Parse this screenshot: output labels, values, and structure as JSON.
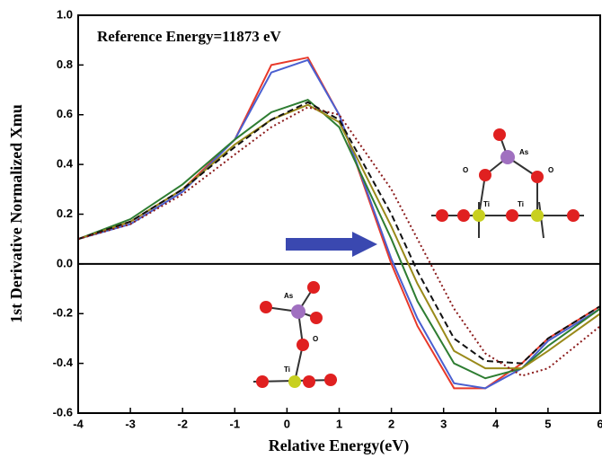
{
  "chart_data": {
    "type": "line",
    "xlabel": "Relative Energy(eV)",
    "ylabel": "1st Derivative Normalized Xmu",
    "annotation": "Reference Energy=11873 eV",
    "molecule_labels": [
      "As",
      "O",
      "O",
      "Ti",
      "Ti",
      "As",
      "O",
      "Ti"
    ],
    "x": [
      -4,
      -3,
      -2,
      -1,
      -0.3,
      0.4,
      1,
      2,
      2.5,
      3.2,
      3.8,
      4.5,
      5,
      6
    ],
    "series": [
      {
        "color": "#e8392a",
        "dash": "none",
        "values": [
          0.1,
          0.17,
          0.3,
          0.5,
          0.8,
          0.83,
          0.6,
          0.0,
          -0.25,
          -0.5,
          -0.5,
          -0.4,
          -0.3,
          -0.17
        ]
      },
      {
        "color": "#4a5fd0",
        "dash": "none",
        "values": [
          0.1,
          0.16,
          0.29,
          0.5,
          0.77,
          0.82,
          0.6,
          0.02,
          -0.22,
          -0.48,
          -0.5,
          -0.42,
          -0.31,
          -0.18
        ]
      },
      {
        "color": "#2e7d32",
        "dash": "none",
        "values": [
          0.1,
          0.18,
          0.32,
          0.5,
          0.61,
          0.66,
          0.55,
          0.1,
          -0.15,
          -0.4,
          -0.46,
          -0.42,
          -0.33,
          -0.18
        ]
      },
      {
        "color": "#9a8a1a",
        "dash": "none",
        "values": [
          0.1,
          0.17,
          0.3,
          0.48,
          0.58,
          0.64,
          0.57,
          0.15,
          -0.08,
          -0.35,
          -0.42,
          -0.42,
          -0.35,
          -0.2
        ]
      },
      {
        "color": "#111111",
        "dash": "7 4",
        "values": [
          0.1,
          0.17,
          0.3,
          0.47,
          0.58,
          0.65,
          0.58,
          0.2,
          -0.03,
          -0.3,
          -0.39,
          -0.4,
          -0.3,
          -0.17
        ]
      },
      {
        "color": "#8b1a1a",
        "dash": "2 3",
        "values": [
          0.1,
          0.16,
          0.28,
          0.44,
          0.55,
          0.63,
          0.6,
          0.3,
          0.1,
          -0.18,
          -0.36,
          -0.45,
          -0.42,
          -0.25
        ]
      }
    ],
    "xlim": [
      -4,
      6
    ],
    "ylim": [
      -0.6,
      1.0
    ],
    "xticks": [
      -4,
      -3,
      -2,
      -1,
      0,
      1,
      2,
      3,
      4,
      5,
      6
    ],
    "yticks": [
      -0.6,
      -0.4,
      -0.2,
      {
        "value": 0,
        "label": "0.0"
      },
      0.2,
      0.4,
      0.6,
      0.8,
      {
        "value": 1,
        "label": "1.0"
      }
    ]
  }
}
